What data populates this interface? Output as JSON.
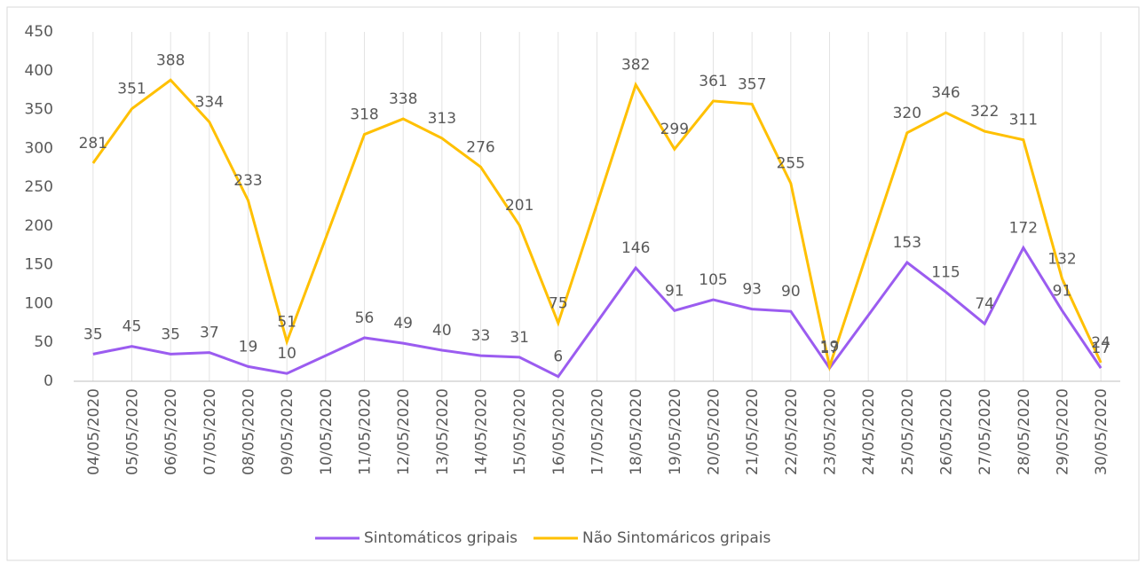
{
  "chart_data": {
    "type": "line",
    "categories": [
      "04/05/2020",
      "05/05/2020",
      "06/05/2020",
      "07/05/2020",
      "08/05/2020",
      "09/05/2020",
      "10/05/2020",
      "11/05/2020",
      "12/05/2020",
      "13/05/2020",
      "14/05/2020",
      "15/05/2020",
      "16/05/2020",
      "17/05/2020",
      "18/05/2020",
      "19/05/2020",
      "20/05/2020",
      "21/05/2020",
      "22/05/2020",
      "23/05/2020",
      "24/05/2020",
      "25/05/2020",
      "26/05/2020",
      "27/05/2020",
      "28/05/2020",
      "29/05/2020",
      "30/05/2020"
    ],
    "series": [
      {
        "name": "Sintomáticos gripais",
        "color": "#9b5cf0",
        "values": [
          35,
          45,
          35,
          37,
          19,
          10,
          33,
          56,
          49,
          40,
          33,
          31,
          6,
          76,
          146,
          91,
          105,
          93,
          90,
          17,
          85,
          153,
          115,
          74,
          172,
          91,
          17
        ],
        "value_labels": [
          "35",
          "45",
          "35",
          "37",
          "19",
          "10",
          null,
          "56",
          "49",
          "40",
          "33",
          "31",
          "6",
          null,
          "146",
          "91",
          "105",
          "93",
          "90",
          "17",
          null,
          "153",
          "115",
          "74",
          "172",
          "91",
          "17"
        ]
      },
      {
        "name": "Não Sintomáricos gripais",
        "color": "#ffc000",
        "values": [
          281,
          351,
          388,
          334,
          233,
          51,
          184,
          318,
          338,
          313,
          276,
          201,
          75,
          228,
          382,
          299,
          361,
          357,
          255,
          19,
          170,
          320,
          346,
          322,
          311,
          132,
          24
        ],
        "value_labels": [
          "281",
          "351",
          "388",
          "334",
          "233",
          "51",
          null,
          "318",
          "338",
          "313",
          "276",
          "201",
          "75",
          null,
          "382",
          "299",
          "361",
          "357",
          "255",
          "19",
          null,
          "320",
          "346",
          "322",
          "311",
          "132",
          "24"
        ]
      }
    ],
    "ylim": [
      0,
      450
    ],
    "yticks": [
      0,
      50,
      100,
      150,
      200,
      250,
      300,
      350,
      400,
      450
    ],
    "grid": true,
    "legend": "bottom"
  }
}
